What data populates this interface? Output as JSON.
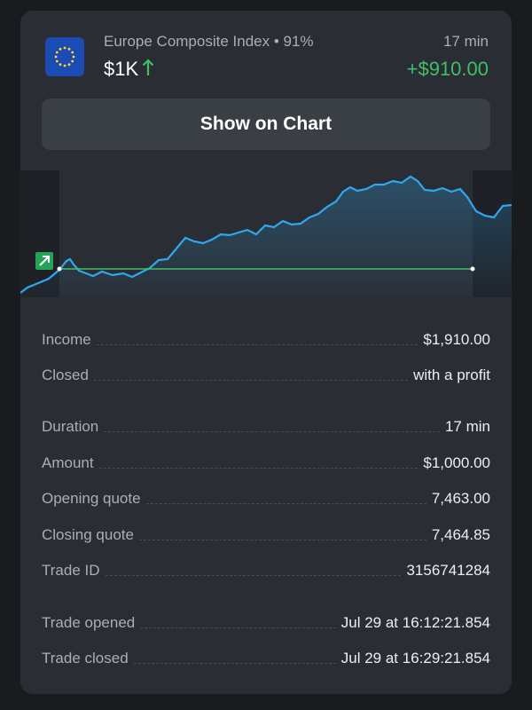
{
  "trade": {
    "asset_title": "Europe Composite Index • 91%",
    "amount_label": "$1K",
    "duration_label": "17 min",
    "profit_label": "+$910.00",
    "show_chart_label": "Show on Chart",
    "flag_icon": "eu-flag-icon",
    "direction_icon": "arrow-up-icon",
    "colors": {
      "profit": "#3fbf68",
      "line": "#2ea8f0",
      "card": "#2a2d33"
    }
  },
  "details": [
    {
      "label": "Income",
      "value": "$1,910.00"
    },
    {
      "label": "Closed",
      "value": "with a profit"
    },
    {
      "label": "Duration",
      "value": "17 min"
    },
    {
      "label": "Amount",
      "value": "$1,000.00"
    },
    {
      "label": "Opening quote",
      "value": "7,463.00"
    },
    {
      "label": "Closing quote",
      "value": "7,464.85"
    },
    {
      "label": "Trade ID",
      "value": "3156741284"
    },
    {
      "label": "Trade opened",
      "value": "Jul 29 at 16:12:21.854"
    },
    {
      "label": "Trade closed",
      "value": "Jul 29 at 16:29:21.854"
    }
  ]
}
